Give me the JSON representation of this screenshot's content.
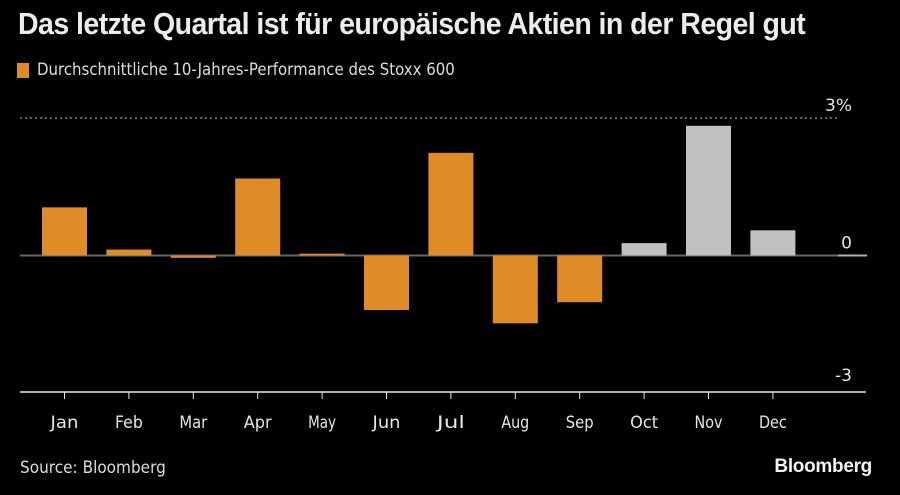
{
  "header": {
    "title": "Das letzte Quartal ist für europäische Aktien in der Regel gut"
  },
  "legend": {
    "label": "Durchschnittliche 10-Jahres-Performance des Stoxx 600",
    "color": "#df8b27"
  },
  "footer": {
    "source": "Source: Bloomberg",
    "brand": "Bloomberg"
  },
  "colors": {
    "past": "#df8b27",
    "highlight": "#c0c0c0",
    "background": "#000000",
    "zero_line": "#666666",
    "grid": "#9a9a9a",
    "axis": "#e6e6e6"
  },
  "chart_data": {
    "type": "bar",
    "title": "Das letzte Quartal ist für europäische Aktien in der Regel gut",
    "xlabel": "",
    "ylabel": "",
    "unit": "%",
    "categories": [
      "Jan",
      "Feb",
      "Mar",
      "Apr",
      "May",
      "Jun",
      "Jul",
      "Aug",
      "Sep",
      "Oct",
      "Nov",
      "Dec"
    ],
    "series": [
      {
        "name": "Durchschnittliche 10-Jahres-Performance des Stoxx 600",
        "values": [
          1.05,
          0.13,
          -0.05,
          1.68,
          0.04,
          -1.19,
          2.24,
          -1.48,
          -1.02,
          0.27,
          2.83,
          0.55
        ],
        "highlighted_categories": [
          "Oct",
          "Nov",
          "Dec"
        ]
      }
    ],
    "ylim": [
      -3,
      3
    ],
    "yticks": [
      {
        "value": 3,
        "label": "3%"
      },
      {
        "value": 0,
        "label": "0"
      },
      {
        "value": -3,
        "label": "-3"
      }
    ],
    "grid": "dotted line at top tick only",
    "y_axis_position": "right",
    "legend_position": "top-left"
  }
}
